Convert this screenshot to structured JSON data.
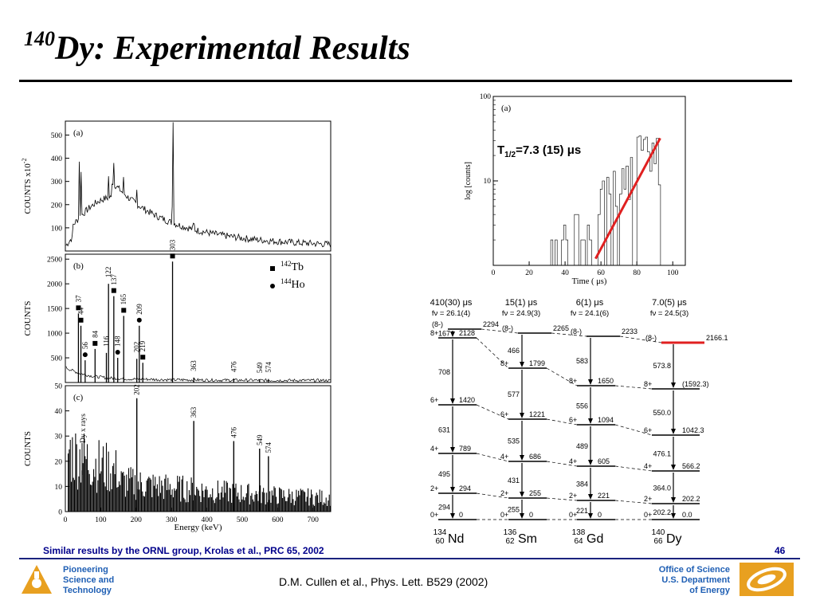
{
  "slide": {
    "title_sup": "140",
    "title_rest": "Dy: Experimental Results",
    "caption": "Similar results by the ORNL group, Krolas et al., PRC 65, 2002",
    "page_number": "46",
    "reference": "D.M. Cullen et al., Phys. Lett. B529 (2002)",
    "left_org": [
      "Pioneering",
      "Science and",
      "Technology"
    ],
    "right_org": [
      "Office of Science",
      "U.S. Department",
      "of Energy"
    ]
  },
  "colors": {
    "accent_red": "#e02020",
    "footer_blue": "#1f5fb4",
    "logo_orange": "#e8a020"
  },
  "chart_data": [
    {
      "type": "line",
      "panel": "(a)",
      "ylabel": "COUNTS x10",
      "ylabel_exp": "-2",
      "yticks": [
        "500",
        "400",
        "300",
        "200",
        "100"
      ],
      "ylim": [
        0,
        560
      ]
    },
    {
      "type": "bar",
      "panel": "(b)",
      "ylabel": "COUNTS",
      "yticks": [
        "2500",
        "2000",
        "1500",
        "1000",
        "500"
      ],
      "ylim": [
        0,
        2600
      ],
      "legend": [
        {
          "marker": "square",
          "mass": "142",
          "element": "Tb"
        },
        {
          "marker": "circle",
          "mass": "144",
          "element": "Ho"
        }
      ],
      "peaks": [
        {
          "label": "37",
          "energy": 37,
          "marker": "square"
        },
        {
          "label": "44",
          "energy": 44,
          "marker": "square"
        },
        {
          "label": "56",
          "energy": 56,
          "marker": "circle"
        },
        {
          "label": "84",
          "energy": 84,
          "marker": "square"
        },
        {
          "label": "116",
          "energy": 116,
          "marker": ""
        },
        {
          "label": "122",
          "energy": 122,
          "marker": ""
        },
        {
          "label": "137",
          "energy": 137,
          "marker": "square"
        },
        {
          "label": "148",
          "energy": 148,
          "marker": "circle"
        },
        {
          "label": "165",
          "energy": 165,
          "marker": "square"
        },
        {
          "label": "202",
          "energy": 202,
          "marker": ""
        },
        {
          "label": "209",
          "energy": 209,
          "marker": "circle"
        },
        {
          "label": "219",
          "energy": 219,
          "marker": "square"
        },
        {
          "label": "303",
          "energy": 303,
          "marker": "square"
        },
        {
          "label": "363",
          "energy": 363,
          "marker": ""
        },
        {
          "label": "476",
          "energy": 476,
          "marker": ""
        },
        {
          "label": "549",
          "energy": 549,
          "marker": ""
        },
        {
          "label": "574",
          "energy": 574,
          "marker": ""
        }
      ]
    },
    {
      "type": "bar",
      "panel": "(c)",
      "ylabel": "COUNTS",
      "xlabel": "Energy (keV)",
      "xticks": [
        "0",
        "100",
        "200",
        "300",
        "400",
        "500",
        "600",
        "700"
      ],
      "yticks": [
        "50",
        "40",
        "30",
        "20",
        "10",
        "0"
      ],
      "xlim": [
        0,
        750
      ],
      "ylim": [
        0,
        50
      ],
      "annotation": "Dy x rays",
      "peaks": [
        {
          "label": "202",
          "energy": 202,
          "value": 45
        },
        {
          "label": "363",
          "energy": 363,
          "value": 36
        },
        {
          "label": "476",
          "energy": 476,
          "value": 28
        },
        {
          "label": "549",
          "energy": 549,
          "value": 25
        },
        {
          "label": "574",
          "energy": 574,
          "value": 22
        }
      ]
    },
    {
      "type": "line",
      "panel": "(a)",
      "ylabel": "log [counts]",
      "xlabel": "Time ( μs)",
      "xticks": [
        "0",
        "20",
        "40",
        "60",
        "80",
        "100"
      ],
      "yticks": [
        "100",
        "10"
      ],
      "xlim": [
        0,
        107
      ],
      "log_y": true,
      "fit_label_main": "T",
      "fit_label_sub": "1/2",
      "fit_label_value": "=7.3 (15) μs",
      "fit_line": {
        "x": [
          57,
          93
        ],
        "y": [
          1.2,
          32
        ]
      }
    }
  ],
  "level_schemes": [
    {
      "id": "nd",
      "mass": "134",
      "z": "60",
      "element": "Nd",
      "halflife": "410(30) μs",
      "fnu": "fν = 26.1(4)",
      "levels": [
        {
          "spin": "(8-)",
          "energy": "2294"
        },
        {
          "spin": "8+",
          "energy": "2128"
        },
        {
          "spin": "6+",
          "energy": "1420"
        },
        {
          "spin": "4+",
          "energy": "789"
        },
        {
          "spin": "2+",
          "energy": "294"
        },
        {
          "spin": "0+",
          "energy": "0"
        }
      ],
      "transitions": [
        "167",
        "708",
        "631",
        "495",
        "294"
      ]
    },
    {
      "id": "sm",
      "mass": "136",
      "z": "62",
      "element": "Sm",
      "halflife": "15(1) μs",
      "fnu": "fν = 24.9(3)",
      "levels": [
        {
          "spin": "(8-)",
          "energy": "2265"
        },
        {
          "spin": "8+",
          "energy": "1799"
        },
        {
          "spin": "6+",
          "energy": "1221"
        },
        {
          "spin": "4+",
          "energy": "686"
        },
        {
          "spin": "2+",
          "energy": "255"
        },
        {
          "spin": "0+",
          "energy": "0"
        }
      ],
      "transitions": [
        "466",
        "577",
        "535",
        "431",
        "255"
      ]
    },
    {
      "id": "gd",
      "mass": "138",
      "z": "64",
      "element": "Gd",
      "halflife": "6(1)  μs",
      "fnu": "fν = 24.1(6)",
      "levels": [
        {
          "spin": "(8-)",
          "energy": "2233"
        },
        {
          "spin": "8+",
          "energy": "1650"
        },
        {
          "spin": "6+",
          "energy": "1094"
        },
        {
          "spin": "4+",
          "energy": "605"
        },
        {
          "spin": "2+",
          "energy": "221"
        },
        {
          "spin": "0+",
          "energy": "0"
        }
      ],
      "transitions": [
        "583",
        "556",
        "489",
        "384",
        "221"
      ]
    },
    {
      "id": "dy",
      "mass": "140",
      "z": "66",
      "element": "Dy",
      "halflife": "7.0(5)  μs",
      "fnu": "fν = 24.5(3)",
      "levels": [
        {
          "spin": "(8-)",
          "energy": "2166.1"
        },
        {
          "spin": "8+",
          "energy": "(1592.3)"
        },
        {
          "spin": "6+",
          "energy": "1042.3"
        },
        {
          "spin": "4+",
          "energy": "566.2"
        },
        {
          "spin": "2+",
          "energy": "202.2"
        },
        {
          "spin": "0+",
          "energy": "0.0"
        }
      ],
      "transitions": [
        "573.8",
        "550.0",
        "476.1",
        "364.0",
        "202.2"
      ]
    }
  ]
}
